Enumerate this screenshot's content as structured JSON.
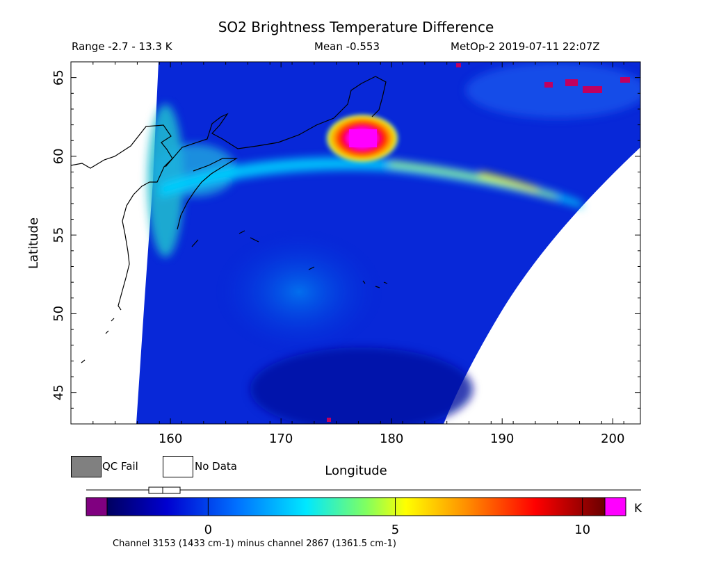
{
  "chart_data": {
    "type": "heatmap",
    "title": "SO2 Brightness Temperature Difference",
    "subtitle_range": "Range -2.7 - 13.3 K",
    "subtitle_mean": "Mean -0.553",
    "subtitle_instrument": "MetOp-2 2019-07-11 22:07Z",
    "xlabel": "Longitude",
    "ylabel": "Latitude",
    "xlim": [
      151,
      202.5
    ],
    "ylim": [
      43,
      66
    ],
    "xticks": [
      160,
      170,
      180,
      190,
      200
    ],
    "xtick_labels": [
      "160",
      "170",
      "180",
      "190",
      "200"
    ],
    "yticks": [
      45,
      50,
      55,
      60,
      65
    ],
    "ytick_labels": [
      "45",
      "50",
      "55",
      "60",
      "65"
    ],
    "colorbar": {
      "min": -2.7,
      "max": 10.6,
      "ticks": [
        0,
        5,
        10
      ],
      "tick_labels": [
        "0",
        "5",
        "10"
      ],
      "unit": "K",
      "caption": "Channel 3153 (1433 cm-1) minus channel 2867 (1361.5 cm-1)"
    },
    "features": [
      {
        "name": "plume maximum",
        "lon": 177.5,
        "lat": 61.0,
        "value": 13.3
      },
      {
        "name": "plume band",
        "lon_range": [
          172,
          197
        ],
        "lat_range": [
          57.5,
          61.5
        ],
        "value": 5
      }
    ],
    "legend": [
      {
        "label": "QC Fail",
        "color": "#808080"
      },
      {
        "label": "No Data",
        "color": "#ffffff"
      }
    ]
  },
  "colors": {
    "qc_fail": "#808080",
    "no_data": "#ffffff",
    "below_range": "#800080",
    "above_range": "#ff00ff"
  }
}
